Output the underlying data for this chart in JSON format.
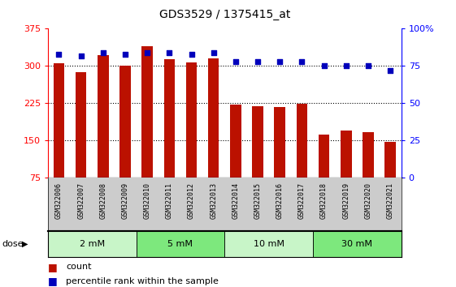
{
  "title": "GDS3529 / 1375415_at",
  "samples": [
    "GSM322006",
    "GSM322007",
    "GSM322008",
    "GSM322009",
    "GSM322010",
    "GSM322011",
    "GSM322012",
    "GSM322013",
    "GSM322014",
    "GSM322015",
    "GSM322016",
    "GSM322017",
    "GSM322018",
    "GSM322019",
    "GSM322020",
    "GSM322021"
  ],
  "counts": [
    305,
    288,
    322,
    300,
    340,
    313,
    308,
    315,
    222,
    220,
    217,
    224,
    162,
    170,
    167,
    148
  ],
  "percentiles": [
    83,
    82,
    84,
    83,
    84,
    84,
    83,
    84,
    78,
    78,
    78,
    78,
    75,
    75,
    75,
    72
  ],
  "ylim_left": [
    75,
    375
  ],
  "ylim_right": [
    0,
    100
  ],
  "yticks_left": [
    75,
    150,
    225,
    300,
    375
  ],
  "yticks_right": [
    0,
    25,
    50,
    75,
    100
  ],
  "dose_groups": [
    {
      "label": "2 mM",
      "start": 0,
      "end": 4,
      "color": "#c8f5c8"
    },
    {
      "label": "5 mM",
      "start": 4,
      "end": 8,
      "color": "#7de87d"
    },
    {
      "label": "10 mM",
      "start": 8,
      "end": 12,
      "color": "#c8f5c8"
    },
    {
      "label": "30 mM",
      "start": 12,
      "end": 16,
      "color": "#7de87d"
    }
  ],
  "bar_color": "#bb1100",
  "dot_color": "#0000bb",
  "xtick_bg": "#cccccc",
  "plot_bg": "#ffffff",
  "dose_label": "dose"
}
